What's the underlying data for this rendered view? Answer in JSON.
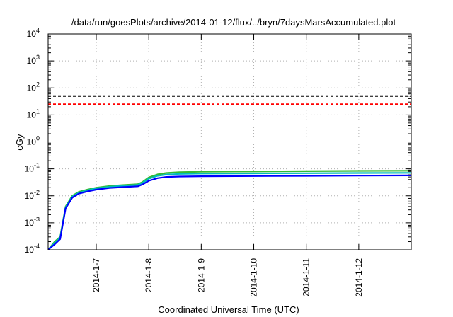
{
  "chart_data": {
    "type": "line",
    "title": "/data/run/goesPlots/archive/2014-01-12/flux/../bryn/7daysMarsAccumulated.plot",
    "xlabel": "Coordinated Universal Time (UTC)",
    "ylabel": "cGy",
    "y_scale": "log",
    "ylim": [
      0.0001,
      10000
    ],
    "y_ticks": [
      {
        "value": 0.0001,
        "base": "10",
        "exp": "-4"
      },
      {
        "value": 0.001,
        "base": "10",
        "exp": "-3"
      },
      {
        "value": 0.01,
        "base": "10",
        "exp": "-2"
      },
      {
        "value": 0.1,
        "base": "10",
        "exp": "-1"
      },
      {
        "value": 1,
        "base": "10",
        "exp": "0"
      },
      {
        "value": 10,
        "base": "10",
        "exp": "1"
      },
      {
        "value": 100,
        "base": "10",
        "exp": "2"
      },
      {
        "value": 1000,
        "base": "10",
        "exp": "3"
      },
      {
        "value": 10000,
        "base": "10",
        "exp": "4"
      }
    ],
    "xlim": [
      "2014-01-06T02:00",
      "2014-01-12T23:59"
    ],
    "x_ticks": [
      {
        "value": "2014-01-07T00:00",
        "label": "2014-1-7"
      },
      {
        "value": "2014-01-08T00:00",
        "label": "2014-1-8"
      },
      {
        "value": "2014-01-09T00:00",
        "label": "2014-1-9"
      },
      {
        "value": "2014-01-10T00:00",
        "label": "2014-1-10"
      },
      {
        "value": "2014-01-11T00:00",
        "label": "2014-1-11"
      },
      {
        "value": "2014-01-12T00:00",
        "label": "2014-1-12"
      }
    ],
    "grid": true,
    "thresholds": [
      {
        "value": 50,
        "color": "#000000",
        "style": "dashed"
      },
      {
        "value": 25,
        "color": "#ff0000",
        "style": "dashed"
      }
    ],
    "series": [
      {
        "color": "#33bb33",
        "x": [
          "2014-01-06T02:00",
          "2014-01-06T05:00",
          "2014-01-06T07:30",
          "2014-01-06T10:00",
          "2014-01-06T13:00",
          "2014-01-06T16:00",
          "2014-01-06T20:00",
          "2014-01-07T00:00",
          "2014-01-07T06:00",
          "2014-01-07T12:00",
          "2014-01-07T19:00",
          "2014-01-07T21:00",
          "2014-01-08T00:00",
          "2014-01-08T04:00",
          "2014-01-08T08:00",
          "2014-01-08T14:00",
          "2014-01-09T00:00",
          "2014-01-10T00:00",
          "2014-01-11T00:00",
          "2014-01-12T00:00",
          "2014-01-12T23:59"
        ],
        "values": [
          0.0001,
          0.0002,
          0.0003,
          0.004,
          0.01,
          0.014,
          0.017,
          0.02,
          0.023,
          0.025,
          0.027,
          0.032,
          0.048,
          0.062,
          0.07,
          0.075,
          0.078,
          0.08,
          0.082,
          0.084,
          0.085
        ]
      },
      {
        "color": "#00bbbb",
        "x": [
          "2014-01-06T02:00",
          "2014-01-06T05:00",
          "2014-01-06T07:30",
          "2014-01-06T10:00",
          "2014-01-06T13:00",
          "2014-01-06T16:00",
          "2014-01-06T20:00",
          "2014-01-07T00:00",
          "2014-01-07T06:00",
          "2014-01-07T12:00",
          "2014-01-07T19:00",
          "2014-01-07T21:00",
          "2014-01-08T00:00",
          "2014-01-08T04:00",
          "2014-01-08T08:00",
          "2014-01-08T14:00",
          "2014-01-09T00:00",
          "2014-01-10T00:00",
          "2014-01-11T00:00",
          "2014-01-12T00:00",
          "2014-01-12T23:59"
        ],
        "values": [
          0.0001,
          0.00018,
          0.00028,
          0.0037,
          0.0093,
          0.013,
          0.016,
          0.019,
          0.0215,
          0.0235,
          0.0255,
          0.03,
          0.043,
          0.055,
          0.061,
          0.065,
          0.067,
          0.068,
          0.069,
          0.07,
          0.071
        ]
      },
      {
        "color": "#0000ff",
        "x": [
          "2014-01-06T02:00",
          "2014-01-06T05:00",
          "2014-01-06T07:30",
          "2014-01-06T10:00",
          "2014-01-06T13:00",
          "2014-01-06T16:00",
          "2014-01-06T20:00",
          "2014-01-07T00:00",
          "2014-01-07T06:00",
          "2014-01-07T12:00",
          "2014-01-07T19:00",
          "2014-01-07T21:00",
          "2014-01-08T00:00",
          "2014-01-08T04:00",
          "2014-01-08T08:00",
          "2014-01-08T14:00",
          "2014-01-09T00:00",
          "2014-01-10T00:00",
          "2014-01-11T00:00",
          "2014-01-12T00:00",
          "2014-01-12T23:59"
        ],
        "values": [
          0.0001,
          0.00016,
          0.00025,
          0.0034,
          0.0085,
          0.012,
          0.0145,
          0.017,
          0.0195,
          0.021,
          0.0225,
          0.026,
          0.036,
          0.045,
          0.05,
          0.052,
          0.053,
          0.054,
          0.055,
          0.056,
          0.057
        ]
      }
    ]
  }
}
